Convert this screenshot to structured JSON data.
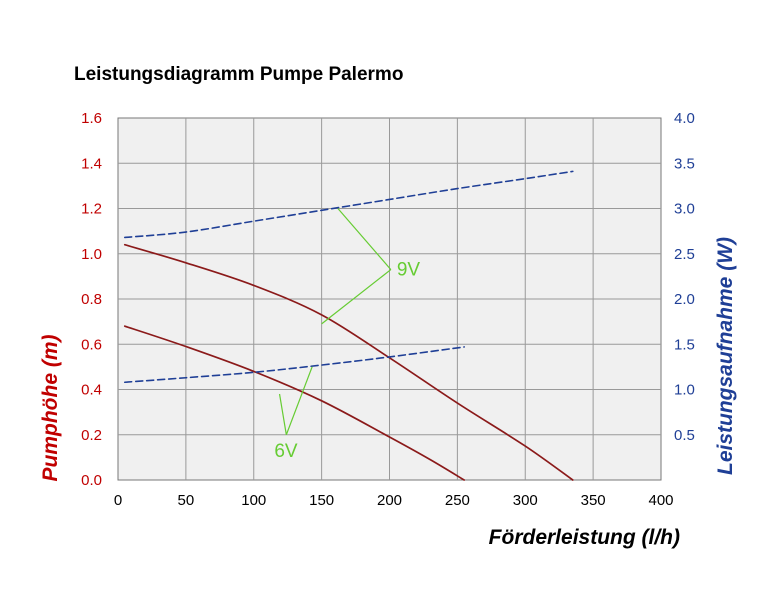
{
  "chart_data": {
    "type": "line",
    "title": "Leistungsdiagramm Pumpe Palermo",
    "xlabel": "Förderleistung (l/h)",
    "ylabel_left": "Pumphöhe (m)",
    "ylabel_right": "Leistungsaufnahme (W)",
    "xlim": [
      0,
      400
    ],
    "ylim_left": [
      0,
      1.6
    ],
    "ylim_right": [
      0,
      4.0
    ],
    "x_ticks": [
      "0",
      "50",
      "100",
      "150",
      "200",
      "250",
      "300",
      "350",
      "400"
    ],
    "y_left_ticks": [
      "0.0",
      "0.2",
      "0.4",
      "0.6",
      "0.8",
      "1.0",
      "1.2",
      "1.4",
      "1.6"
    ],
    "y_right_ticks": [
      "0.5",
      "1.0",
      "1.5",
      "2.0",
      "2.5",
      "3.0",
      "3.5",
      "4.0"
    ],
    "grid": true,
    "colors": {
      "head": "#8b1a1a",
      "power": "#1f3f96",
      "annotation": "#66cc33",
      "left_axis": "#c00000",
      "right_axis": "#1f3f96",
      "plot_background": "#f0f0f0",
      "grid": "#999999"
    },
    "series": [
      {
        "name": "Pumphöhe 9V",
        "axis": "left",
        "style": "solid",
        "points": [
          [
            5,
            1.04
          ],
          [
            50,
            0.96
          ],
          [
            100,
            0.86
          ],
          [
            150,
            0.73
          ],
          [
            200,
            0.54
          ],
          [
            250,
            0.34
          ],
          [
            300,
            0.15
          ],
          [
            335,
            0.0
          ]
        ]
      },
      {
        "name": "Pumphöhe 6V",
        "axis": "left",
        "style": "solid",
        "points": [
          [
            5,
            0.68
          ],
          [
            50,
            0.59
          ],
          [
            100,
            0.48
          ],
          [
            150,
            0.35
          ],
          [
            200,
            0.19
          ],
          [
            230,
            0.09
          ],
          [
            255,
            0.0
          ]
        ]
      },
      {
        "name": "Leistungsaufnahme 9V",
        "axis": "right",
        "style": "dashed",
        "points": [
          [
            5,
            2.68
          ],
          [
            50,
            2.74
          ],
          [
            100,
            2.86
          ],
          [
            150,
            2.98
          ],
          [
            200,
            3.1
          ],
          [
            250,
            3.22
          ],
          [
            300,
            3.33
          ],
          [
            335,
            3.41
          ]
        ]
      },
      {
        "name": "Leistungsaufnahme 6V",
        "axis": "right",
        "style": "dashed",
        "points": [
          [
            5,
            1.08
          ],
          [
            50,
            1.13
          ],
          [
            100,
            1.19
          ],
          [
            150,
            1.27
          ],
          [
            200,
            1.36
          ],
          [
            255,
            1.47
          ]
        ]
      }
    ],
    "annotations": [
      {
        "label": "9V",
        "at": [
          201,
          0.93
        ],
        "pointers": [
          {
            "axis": "right",
            "point": [
              162,
              3.0
            ]
          },
          {
            "axis": "left",
            "point": [
              150,
              0.69
            ]
          }
        ]
      },
      {
        "label": "6V",
        "at": [
          124,
          0.2
        ],
        "pointers": [
          {
            "axis": "left",
            "point": [
              119,
              0.38
            ]
          },
          {
            "axis": "right",
            "point": [
              143,
              1.25
            ]
          }
        ]
      }
    ]
  }
}
